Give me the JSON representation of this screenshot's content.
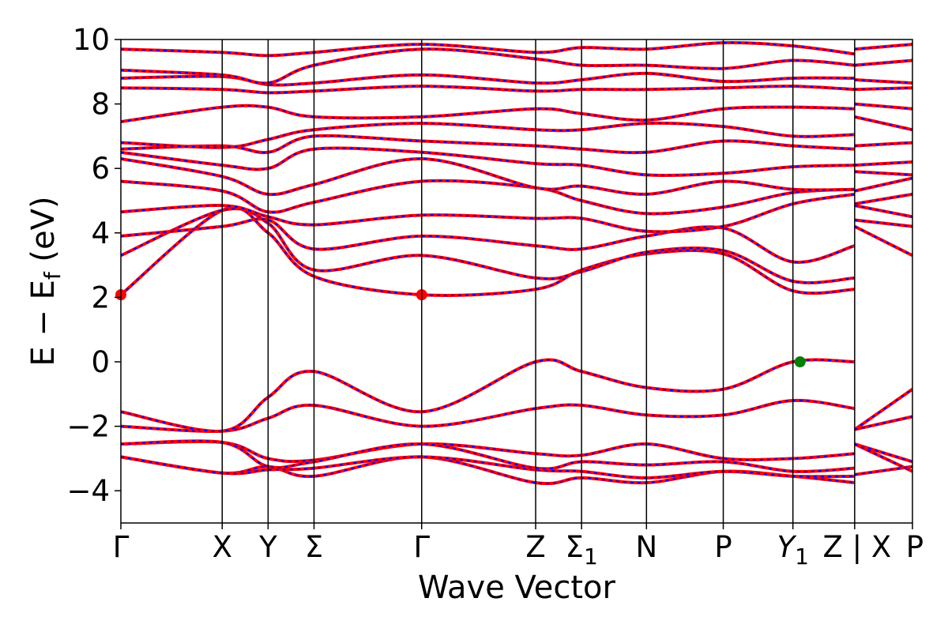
{
  "chart_data": {
    "type": "line",
    "title": "",
    "xlabel": "Wave Vector",
    "ylabel": "E − E_f (eV)",
    "ylabel_main": "E  −  E",
    "ylabel_sub": "f",
    "ylabel_unit": " (eV)",
    "ylim": [
      -5,
      10
    ],
    "yticks": [
      10,
      8,
      6,
      4,
      2,
      0,
      -2,
      -4
    ],
    "ytick_labels": [
      "10",
      "8",
      "6",
      "4",
      "2",
      "0",
      "−2",
      "−4"
    ],
    "grid": false,
    "legend": "none",
    "kpoints": [
      {
        "pos": 0.0,
        "label": "Γ",
        "sub": ""
      },
      {
        "pos": 1.28,
        "label": "X",
        "sub": ""
      },
      {
        "pos": 1.86,
        "label": "Y",
        "sub": ""
      },
      {
        "pos": 2.44,
        "label": "Σ",
        "sub": ""
      },
      {
        "pos": 3.8,
        "label": "Γ",
        "sub": ""
      },
      {
        "pos": 5.24,
        "label": "Z",
        "sub": ""
      },
      {
        "pos": 5.82,
        "label": "Σ",
        "sub": "1"
      },
      {
        "pos": 6.64,
        "label": "N",
        "sub": ""
      },
      {
        "pos": 7.61,
        "label": "P",
        "sub": ""
      },
      {
        "pos": 8.49,
        "label": "Y",
        "sub": "1"
      },
      {
        "pos": 9.27,
        "label": "Z",
        "sub": ""
      },
      {
        "pos": 10.0,
        "label": "X",
        "sub": ""
      }
    ],
    "extra_labels": [
      {
        "pos": 9.27,
        "label": "Z | X",
        "sub": ""
      },
      {
        "pos": 10.0,
        "label": "P",
        "sub": ""
      }
    ],
    "xlim": [
      0,
      10.0
    ],
    "band_line_color": "#ff0000",
    "band_dash_color": "#0000ff",
    "cbm_marker_color": "#ff0000",
    "vbm_marker_color": "#008000",
    "markers": [
      {
        "x": 0.0,
        "y": 2.08,
        "kind": "cbm"
      },
      {
        "x": 3.8,
        "y": 2.08,
        "kind": "cbm"
      },
      {
        "x": 8.58,
        "y": 0.0,
        "kind": "vbm"
      }
    ],
    "series": [
      {
        "x": [
          0,
          1.28,
          1.86,
          2.44,
          3.8,
          5.24,
          5.82,
          6.64,
          7.61,
          8.49,
          9.27
        ],
        "y": [
          -2.95,
          -3.45,
          -3.25,
          -3.55,
          -2.95,
          -3.75,
          -3.6,
          -3.75,
          -3.4,
          -3.55,
          -3.75
        ]
      },
      {
        "x": [
          0,
          1.28,
          1.86,
          2.44,
          3.8,
          5.24,
          5.82,
          6.64,
          7.61,
          8.49,
          9.27
        ],
        "y": [
          -2.95,
          -3.45,
          -3.35,
          -3.3,
          -2.95,
          -3.35,
          -3.4,
          -3.6,
          -3.4,
          -3.55,
          -3.55
        ]
      },
      {
        "x": [
          0,
          1.28,
          1.86,
          2.44,
          3.8,
          5.24,
          5.82,
          6.64,
          7.61,
          8.49,
          9.27
        ],
        "y": [
          -2.55,
          -2.5,
          -3.0,
          -3.05,
          -2.55,
          -2.85,
          -2.9,
          -2.55,
          -3.0,
          -3.0,
          -2.85
        ]
      },
      {
        "x": [
          0,
          1.28,
          1.86,
          2.44,
          3.8,
          5.24,
          5.82,
          6.64,
          7.61,
          8.49,
          9.27
        ],
        "y": [
          -2.55,
          -2.5,
          -3.25,
          -3.1,
          -2.55,
          -3.3,
          -3.1,
          -3.2,
          -3.1,
          -3.4,
          -3.3
        ]
      },
      {
        "x": [
          0,
          1.28,
          1.86,
          2.44,
          3.8,
          5.24,
          5.82,
          6.64,
          7.61,
          8.49,
          9.27
        ],
        "y": [
          -2.0,
          -2.15,
          -1.75,
          -1.35,
          -2.0,
          -1.45,
          -1.35,
          -1.65,
          -1.65,
          -1.2,
          -1.45
        ]
      },
      {
        "x": [
          0,
          1.28,
          1.86,
          2.44,
          3.8,
          5.24,
          5.82,
          6.64,
          7.61,
          8.49,
          9.27
        ],
        "y": [
          -1.55,
          -2.15,
          -1.1,
          -0.3,
          -1.55,
          0.0,
          -0.3,
          -0.8,
          -0.85,
          0.0,
          0.0
        ]
      },
      {
        "x": [
          0,
          1.28,
          1.86,
          2.44,
          3.8,
          5.24,
          5.82,
          6.64,
          7.61,
          8.49,
          9.27
        ],
        "y": [
          2.08,
          4.7,
          4.0,
          2.65,
          2.08,
          2.25,
          2.85,
          3.35,
          3.35,
          2.2,
          2.25
        ]
      },
      {
        "x": [
          0,
          1.28,
          1.86,
          2.44,
          3.8,
          5.24,
          5.82,
          6.64,
          7.61,
          8.49,
          9.27
        ],
        "y": [
          3.3,
          4.7,
          4.3,
          2.85,
          3.3,
          2.6,
          2.8,
          3.4,
          3.45,
          2.5,
          2.6
        ]
      },
      {
        "x": [
          0,
          1.28,
          1.86,
          2.44,
          3.8,
          5.24,
          5.82,
          6.64,
          7.61,
          8.49,
          9.27
        ],
        "y": [
          3.9,
          4.2,
          4.4,
          3.5,
          3.9,
          3.6,
          3.5,
          3.9,
          4.15,
          3.1,
          3.6
        ]
      },
      {
        "x": [
          0,
          1.28,
          1.86,
          2.44,
          3.8,
          5.24,
          5.82,
          6.64,
          7.61,
          8.49,
          9.27
        ],
        "y": [
          4.65,
          4.85,
          4.5,
          4.25,
          4.55,
          4.45,
          4.45,
          4.05,
          4.2,
          4.9,
          5.2
        ]
      },
      {
        "x": [
          0,
          1.28,
          1.86,
          2.44,
          3.8,
          5.24,
          5.82,
          6.64,
          7.61,
          8.49,
          9.27
        ],
        "y": [
          5.6,
          5.3,
          4.65,
          4.95,
          5.6,
          5.4,
          5.0,
          4.6,
          4.8,
          5.25,
          5.35
        ]
      },
      {
        "x": [
          0,
          1.28,
          1.86,
          2.44,
          3.8,
          5.24,
          5.82,
          6.64,
          7.61,
          8.49,
          9.27
        ],
        "y": [
          6.3,
          5.75,
          5.2,
          5.5,
          6.3,
          5.4,
          5.45,
          5.2,
          5.6,
          5.35,
          5.35
        ]
      },
      {
        "x": [
          0,
          1.28,
          1.86,
          2.44,
          3.8,
          5.24,
          5.82,
          6.64,
          7.61,
          8.49,
          9.27
        ],
        "y": [
          6.5,
          6.1,
          6.0,
          6.6,
          6.5,
          6.15,
          6.1,
          5.8,
          5.85,
          6.05,
          6.1
        ]
      },
      {
        "x": [
          0,
          1.28,
          1.86,
          2.44,
          3.8,
          5.24,
          5.82,
          6.64,
          7.61,
          8.49,
          9.27
        ],
        "y": [
          6.6,
          6.7,
          6.5,
          7.0,
          6.85,
          6.7,
          6.6,
          6.5,
          6.85,
          6.7,
          6.6
        ]
      },
      {
        "x": [
          0,
          1.28,
          1.86,
          2.44,
          3.8,
          5.24,
          5.82,
          6.64,
          7.61,
          8.49,
          9.27
        ],
        "y": [
          6.8,
          6.65,
          6.9,
          7.2,
          7.4,
          7.2,
          7.2,
          7.4,
          7.3,
          7.0,
          7.05
        ]
      },
      {
        "x": [
          0,
          1.28,
          1.86,
          2.44,
          3.8,
          5.24,
          5.82,
          6.64,
          7.61,
          8.49,
          9.27
        ],
        "y": [
          7.45,
          7.9,
          7.9,
          7.6,
          7.6,
          7.85,
          7.7,
          7.5,
          7.85,
          7.9,
          7.85
        ]
      },
      {
        "x": [
          0,
          1.28,
          1.86,
          2.44,
          3.8,
          5.24,
          5.82,
          6.64,
          7.61,
          8.49,
          9.27
        ],
        "y": [
          8.5,
          8.45,
          8.35,
          8.4,
          8.55,
          8.4,
          8.45,
          8.45,
          8.5,
          8.55,
          8.45
        ]
      },
      {
        "x": [
          0,
          1.28,
          1.86,
          2.44,
          3.8,
          5.24,
          5.82,
          6.64,
          7.61,
          8.49,
          9.27
        ],
        "y": [
          8.8,
          8.85,
          8.6,
          8.65,
          8.9,
          8.65,
          8.75,
          8.95,
          8.7,
          8.8,
          8.8
        ]
      },
      {
        "x": [
          0,
          1.28,
          1.86,
          2.44,
          3.8,
          5.24,
          5.82,
          6.64,
          7.61,
          8.49,
          9.27
        ],
        "y": [
          9.05,
          8.9,
          8.65,
          9.2,
          9.7,
          9.4,
          9.2,
          9.2,
          9.1,
          9.35,
          9.2
        ]
      },
      {
        "x": [
          0,
          1.28,
          1.86,
          2.44,
          3.8,
          5.24,
          5.82,
          6.64,
          7.61,
          8.49,
          9.27
        ],
        "y": [
          9.7,
          9.6,
          9.5,
          9.6,
          9.85,
          9.6,
          9.75,
          9.7,
          9.9,
          9.8,
          9.55
        ]
      },
      {
        "x": [
          9.27,
          10.0
        ],
        "y": [
          -2.1,
          -0.85
        ]
      },
      {
        "x": [
          9.27,
          10.0
        ],
        "y": [
          -2.1,
          -1.7
        ]
      },
      {
        "x": [
          9.27,
          10.0
        ],
        "y": [
          -2.55,
          -3.1
        ]
      },
      {
        "x": [
          9.27,
          10.0
        ],
        "y": [
          -2.55,
          -3.4
        ]
      },
      {
        "x": [
          9.27,
          10.0
        ],
        "y": [
          -3.5,
          -3.25
        ]
      },
      {
        "x": [
          9.27,
          10.0
        ],
        "y": [
          4.2,
          3.3
        ]
      },
      {
        "x": [
          9.27,
          10.0
        ],
        "y": [
          4.4,
          4.2
        ]
      },
      {
        "x": [
          9.27,
          10.0
        ],
        "y": [
          4.85,
          4.5
        ]
      },
      {
        "x": [
          9.27,
          10.0
        ],
        "y": [
          4.9,
          5.2
        ]
      },
      {
        "x": [
          9.27,
          10.0
        ],
        "y": [
          5.3,
          5.7
        ]
      },
      {
        "x": [
          9.27,
          10.0
        ],
        "y": [
          5.9,
          5.8
        ]
      },
      {
        "x": [
          9.27,
          10.0
        ],
        "y": [
          6.1,
          6.2
        ]
      },
      {
        "x": [
          9.27,
          10.0
        ],
        "y": [
          6.7,
          6.8
        ]
      },
      {
        "x": [
          9.27,
          10.0
        ],
        "y": [
          7.6,
          7.2
        ]
      },
      {
        "x": [
          9.27,
          10.0
        ],
        "y": [
          8.0,
          7.85
        ]
      },
      {
        "x": [
          9.27,
          10.0
        ],
        "y": [
          8.45,
          8.5
        ]
      },
      {
        "x": [
          9.27,
          10.0
        ],
        "y": [
          8.75,
          8.65
        ]
      },
      {
        "x": [
          9.27,
          10.0
        ],
        "y": [
          9.2,
          9.35
        ]
      },
      {
        "x": [
          9.27,
          10.0
        ],
        "y": [
          9.7,
          9.85
        ]
      }
    ]
  }
}
